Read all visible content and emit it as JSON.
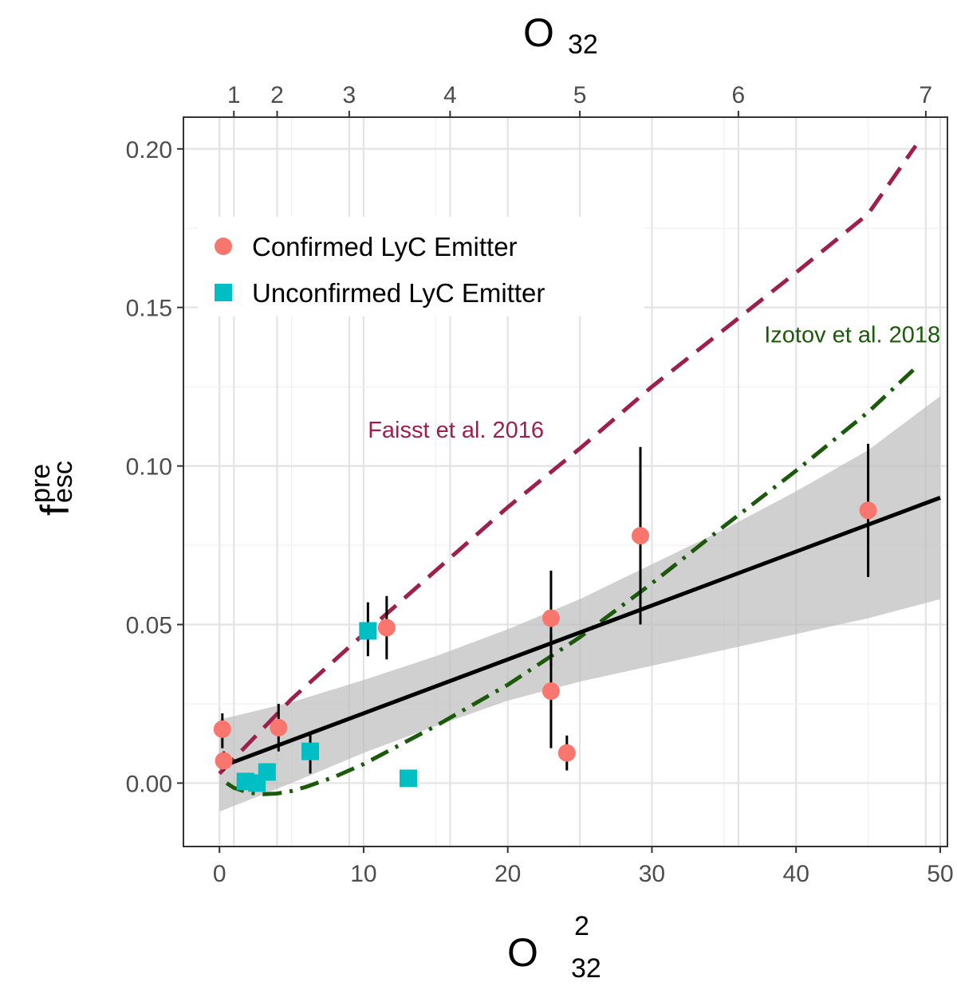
{
  "chart_data": {
    "type": "scatter",
    "xlabel": {
      "main": "O",
      "sup": "2",
      "sub": "32"
    },
    "ylabel": {
      "main": "f",
      "sup": "pre",
      "sub": "esc"
    },
    "top_axis_label": {
      "main": "O",
      "sub": "32"
    },
    "xlim": [
      -2.5,
      50.5
    ],
    "ylim": [
      -0.02,
      0.21
    ],
    "x_ticks": [
      0,
      10,
      20,
      30,
      40,
      50
    ],
    "x_tick_labels": [
      "0",
      "10",
      "20",
      "30",
      "40",
      "50"
    ],
    "y_ticks": [
      0.0,
      0.05,
      0.1,
      0.15,
      0.2
    ],
    "y_tick_labels": [
      "0.00",
      "0.05",
      "0.10",
      "0.15",
      "0.20"
    ],
    "top_ticks": [
      1,
      2,
      3,
      4,
      5,
      6,
      7
    ],
    "top_tick_labels": [
      "1",
      "2",
      "3",
      "4",
      "5",
      "6",
      "7"
    ],
    "grid": true,
    "legend": {
      "position": "top-left",
      "entries": [
        {
          "label": "Confirmed LyC Emitter",
          "color": "#F8766D",
          "shape": "circle"
        },
        {
          "label": "Unconfirmed LyC Emitter",
          "color": "#00BFC4",
          "shape": "square"
        }
      ]
    },
    "series": [
      {
        "name": "Confirmed LyC Emitter",
        "color": "#F8766D",
        "marker": "circle",
        "points": [
          {
            "x": 0.2,
            "y": 0.017,
            "ylo": 0.011,
            "yhi": 0.022
          },
          {
            "x": 0.3,
            "y": 0.007,
            "ylo": 0.004,
            "yhi": 0.01
          },
          {
            "x": 4.1,
            "y": 0.0175,
            "ylo": 0.01,
            "yhi": 0.025
          },
          {
            "x": 11.6,
            "y": 0.049,
            "ylo": 0.039,
            "yhi": 0.059
          },
          {
            "x": 23.0,
            "y": 0.052,
            "ylo": 0.037,
            "yhi": 0.067
          },
          {
            "x": 23.0,
            "y": 0.029,
            "ylo": 0.011,
            "yhi": 0.047
          },
          {
            "x": 24.1,
            "y": 0.0095,
            "ylo": 0.004,
            "yhi": 0.015
          },
          {
            "x": 29.2,
            "y": 0.078,
            "ylo": 0.05,
            "yhi": 0.106
          },
          {
            "x": 45.0,
            "y": 0.086,
            "ylo": 0.065,
            "yhi": 0.107
          }
        ]
      },
      {
        "name": "Unconfirmed LyC Emitter",
        "color": "#00BFC4",
        "marker": "square",
        "points": [
          {
            "x": 10.3,
            "y": 0.048,
            "ylo": 0.04,
            "yhi": 0.057
          },
          {
            "x": 6.3,
            "y": 0.01,
            "ylo": 0.003,
            "yhi": 0.016
          },
          {
            "x": 1.8,
            "y": 0.0005,
            "ylo": null,
            "yhi": null
          },
          {
            "x": 2.6,
            "y": 0.0,
            "ylo": null,
            "yhi": null
          },
          {
            "x": 3.3,
            "y": 0.0035,
            "ylo": null,
            "yhi": null
          },
          {
            "x": 13.1,
            "y": 0.0015,
            "ylo": null,
            "yhi": null
          }
        ]
      }
    ],
    "fit": {
      "name": "linear fit",
      "color": "#000000",
      "x": [
        0,
        50
      ],
      "y": [
        0.005,
        0.09
      ],
      "band_x": [
        0,
        5,
        10,
        15,
        20,
        25,
        30,
        35,
        40,
        45,
        50
      ],
      "band_lower": [
        -0.009,
        0.0,
        0.0095,
        0.018,
        0.026,
        0.032,
        0.037,
        0.042,
        0.047,
        0.052,
        0.058
      ],
      "band_upper": [
        0.02,
        0.0255,
        0.0325,
        0.04,
        0.0485,
        0.058,
        0.069,
        0.08,
        0.092,
        0.105,
        0.122
      ]
    },
    "reference_lines": [
      {
        "name": "Faisst et al. 2016",
        "label": "Faisst et al. 2016",
        "color": "#9E1F4E",
        "style": "dashed",
        "x": [
          0,
          5,
          10,
          15,
          20,
          25,
          30,
          35,
          40,
          45,
          48.3
        ],
        "y": [
          0.003,
          0.0265,
          0.047,
          0.067,
          0.087,
          0.1055,
          0.125,
          0.143,
          0.161,
          0.1795,
          0.201
        ],
        "label_at": {
          "x": 16.4,
          "y": 0.109
        }
      },
      {
        "name": "Izotov et al. 2018",
        "label": "Izotov et al. 2018",
        "color": "#1A5A0A",
        "style": "dotdash",
        "x": [
          0.5,
          1,
          2,
          3,
          4,
          5,
          6,
          8,
          10,
          15,
          20,
          25,
          30,
          35,
          40,
          45,
          48.3
        ],
        "y": [
          0.0,
          -0.0015,
          -0.003,
          -0.0035,
          -0.0033,
          -0.0025,
          -0.0012,
          0.002,
          0.006,
          0.018,
          0.031,
          0.046,
          0.063,
          0.081,
          0.0985,
          0.117,
          0.131
        ],
        "label_at": {
          "x": 43.9,
          "y": 0.139
        }
      }
    ]
  }
}
